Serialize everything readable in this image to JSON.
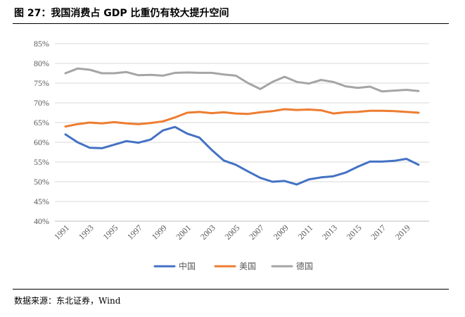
{
  "figure": {
    "title": "图 27：我国消费占 GDP 比重仍有较大提升空间",
    "source": "数据来源：东北证券，Wind"
  },
  "chart_data": {
    "type": "line",
    "title": "",
    "xlabel": "",
    "ylabel": "",
    "ylim": [
      40,
      85
    ],
    "y_ticks": [
      "40%",
      "45%",
      "50%",
      "55%",
      "60%",
      "65%",
      "70%",
      "75%",
      "80%",
      "85%"
    ],
    "x_tick_labels": [
      "1991",
      "1993",
      "1995",
      "1997",
      "1999",
      "2001",
      "2003",
      "2005",
      "2007",
      "2009",
      "2011",
      "2013",
      "2015",
      "2017",
      "2019"
    ],
    "x": [
      1991,
      1992,
      1993,
      1994,
      1995,
      1996,
      1997,
      1998,
      1999,
      2000,
      2001,
      2002,
      2003,
      2004,
      2005,
      2006,
      2007,
      2008,
      2009,
      2010,
      2011,
      2012,
      2013,
      2014,
      2015,
      2016,
      2017,
      2018,
      2019,
      2020
    ],
    "grid": true,
    "legend_position": "bottom",
    "series": [
      {
        "name": "中国",
        "color": "#4472C4",
        "values": [
          62.0,
          60.0,
          58.6,
          58.5,
          59.4,
          60.3,
          59.9,
          60.7,
          63.0,
          63.9,
          62.2,
          61.2,
          58.1,
          55.4,
          54.3,
          52.6,
          51.0,
          50.0,
          50.2,
          49.3,
          50.6,
          51.1,
          51.4,
          52.3,
          53.8,
          55.1,
          55.1,
          55.3,
          55.8,
          54.3
        ]
      },
      {
        "name": "美国",
        "color": "#ED7D31",
        "values": [
          64.0,
          64.6,
          65.0,
          64.8,
          65.1,
          64.8,
          64.6,
          64.9,
          65.3,
          66.3,
          67.5,
          67.7,
          67.4,
          67.6,
          67.3,
          67.2,
          67.6,
          67.9,
          68.4,
          68.2,
          68.3,
          68.1,
          67.3,
          67.6,
          67.7,
          68.0,
          68.0,
          67.9,
          67.7,
          67.5
        ]
      },
      {
        "name": "德国",
        "color": "#A5A5A5",
        "values": [
          77.5,
          78.7,
          78.4,
          77.5,
          77.5,
          77.8,
          77.0,
          77.1,
          76.9,
          77.6,
          77.7,
          77.6,
          77.6,
          77.2,
          76.9,
          75.0,
          73.5,
          75.3,
          76.6,
          75.3,
          74.9,
          75.8,
          75.3,
          74.2,
          73.8,
          74.1,
          72.9,
          73.1,
          73.3,
          73.0
        ]
      }
    ]
  }
}
